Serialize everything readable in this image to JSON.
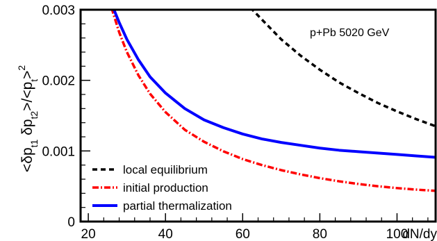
{
  "chart_data": {
    "type": "line",
    "title": "",
    "annotation": "p+Pb 5020 GeV",
    "xlabel": "dN/dy",
    "ylabel": {
      "parts": [
        "<δp",
        "t1",
        " δp",
        "t2",
        ">/<p",
        "t",
        ">",
        "2"
      ]
    },
    "xlim": [
      18,
      110
    ],
    "ylim": [
      0,
      0.003
    ],
    "x_ticks": [
      20,
      40,
      60,
      80,
      100
    ],
    "x_tick_labels": [
      "20",
      "40",
      "60",
      "80",
      "100"
    ],
    "y_ticks": [
      0,
      0.001,
      0.002,
      0.003
    ],
    "y_tick_labels": [
      "0",
      "0.001",
      "0.002",
      "0.003"
    ],
    "grid": false,
    "legend_position": "bottom-left",
    "series": [
      {
        "name": "local equilibrium",
        "color": "#000000",
        "style": "dashed",
        "x": [
          62,
          65,
          70,
          75,
          80,
          85,
          90,
          95,
          100,
          105,
          110
        ],
        "y": [
          0.00303,
          0.00286,
          0.00258,
          0.00235,
          0.00215,
          0.00197,
          0.00182,
          0.00168,
          0.00156,
          0.00145,
          0.00135
        ]
      },
      {
        "name": "initial production",
        "color": "#ff0000",
        "style": "dash-dot",
        "x": [
          26,
          28,
          30,
          33,
          36,
          40,
          45,
          50,
          55,
          60,
          65,
          70,
          75,
          80,
          85,
          90,
          95,
          100,
          105,
          110
        ],
        "y": [
          0.00303,
          0.00268,
          0.0024,
          0.00207,
          0.00181,
          0.00155,
          0.0013,
          0.00113,
          0.000995,
          0.000885,
          0.0008,
          0.000728,
          0.000668,
          0.000615,
          0.00057,
          0.000532,
          0.0005,
          0.000474,
          0.000452,
          0.000435
        ]
      },
      {
        "name": "partial thermalization",
        "color": "#0000ff",
        "style": "solid",
        "x": [
          26.5,
          28,
          30,
          33,
          36,
          40,
          45,
          50,
          55,
          60,
          65,
          70,
          75,
          80,
          85,
          90,
          95,
          100,
          105,
          110
        ],
        "y": [
          0.00302,
          0.00282,
          0.00258,
          0.00229,
          0.00205,
          0.00182,
          0.0016,
          0.00144,
          0.00133,
          0.00124,
          0.00117,
          0.00112,
          0.00108,
          0.00104,
          0.00101,
          0.00099,
          0.00097,
          0.00095,
          0.00093,
          0.00091
        ]
      }
    ]
  }
}
